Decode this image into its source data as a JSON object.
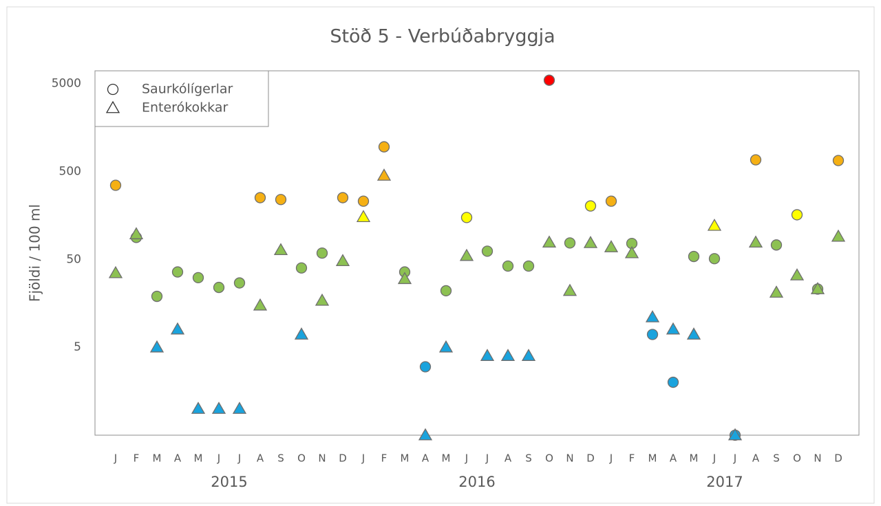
{
  "chart_data": {
    "type": "scatter",
    "title": "Stöð 5  -  Verbúðabryggja",
    "y_label": "Fjöldi / 100 ml",
    "categories": [
      "J",
      "F",
      "M",
      "A",
      "M",
      "J",
      "J",
      "A",
      "S",
      "O",
      "N",
      "D",
      "J",
      "F",
      "M",
      "A",
      "M",
      "J",
      "J",
      "A",
      "S",
      "O",
      "N",
      "D",
      "J",
      "F",
      "M",
      "A",
      "M",
      "J",
      "J",
      "A",
      "S",
      "O",
      "N",
      "D"
    ],
    "years": [
      "2015",
      "2016",
      "2017"
    ],
    "log_scale": true,
    "ylim": [
      0.5,
      7000
    ],
    "yticks": [
      5,
      50,
      500,
      5000
    ],
    "legend": "upper left",
    "series": [
      {
        "name": "Saurkólígerlar",
        "marker": "circle",
        "values": [
          349,
          89,
          19,
          36,
          31,
          24,
          27,
          252,
          240,
          40,
          59,
          252,
          230,
          955,
          36,
          3,
          22,
          150,
          62,
          42,
          42,
          5470,
          77,
          203,
          230,
          76,
          7,
          2,
          54,
          51,
          0.5,
          679,
          73,
          161,
          23,
          667
        ],
        "colors": [
          "#f5b014",
          "#8dc152",
          "#8dc152",
          "#8dc152",
          "#8dc152",
          "#8dc152",
          "#8dc152",
          "#f5b014",
          "#f5b014",
          "#8dc152",
          "#8dc152",
          "#f5b014",
          "#f5b014",
          "#f5b014",
          "#8dc152",
          "#1aa3dd",
          "#8dc152",
          "#ffff00",
          "#8dc152",
          "#8dc152",
          "#8dc152",
          "#ff0000",
          "#8dc152",
          "#ffff00",
          "#f5b014",
          "#8dc152",
          "#1aa3dd",
          "#1aa3dd",
          "#8dc152",
          "#8dc152",
          "#1aa3dd",
          "#f5b014",
          "#8dc152",
          "#ffff00",
          "#8dc152",
          "#f5b014"
        ]
      },
      {
        "name": "Enterókokkar",
        "marker": "triangle",
        "values": [
          35,
          97,
          5,
          8,
          1,
          1,
          1,
          15,
          64,
          7,
          17,
          48,
          152,
          450,
          30,
          0.5,
          5,
          55,
          4,
          4,
          4,
          78,
          22,
          77,
          69,
          59,
          11,
          8,
          7,
          121,
          0.5,
          78,
          21,
          33,
          23,
          91
        ],
        "colors": [
          "#8dc152",
          "#8dc152",
          "#1aa3dd",
          "#1aa3dd",
          "#1aa3dd",
          "#1aa3dd",
          "#1aa3dd",
          "#8dc152",
          "#8dc152",
          "#1aa3dd",
          "#8dc152",
          "#8dc152",
          "#ffff00",
          "#f5b014",
          "#8dc152",
          "#1aa3dd",
          "#1aa3dd",
          "#8dc152",
          "#1aa3dd",
          "#1aa3dd",
          "#1aa3dd",
          "#8dc152",
          "#8dc152",
          "#8dc152",
          "#8dc152",
          "#8dc152",
          "#1aa3dd",
          "#1aa3dd",
          "#1aa3dd",
          "#ffff00",
          "#1aa3dd",
          "#8dc152",
          "#8dc152",
          "#8dc152",
          "#8dc152",
          "#8dc152"
        ]
      }
    ]
  }
}
